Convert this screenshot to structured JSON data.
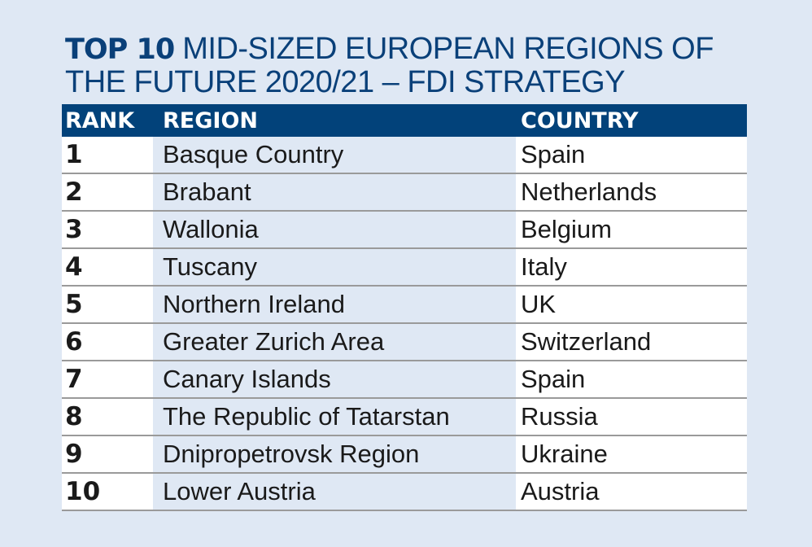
{
  "title": {
    "bold": "TOP 10",
    "rest": " MID-SIZED EUROPEAN REGIONS OF THE FUTURE 2020/21 – FDI STRATEGY"
  },
  "table": {
    "headers": [
      "RANK",
      "REGION",
      "COUNTRY"
    ],
    "rows": [
      [
        "1",
        "Basque Country",
        "Spain"
      ],
      [
        "2",
        "Brabant",
        "Netherlands"
      ],
      [
        "3",
        "Wallonia",
        "Belgium"
      ],
      [
        "4",
        "Tuscany",
        "Italy"
      ],
      [
        "5",
        "Northern Ireland",
        "UK"
      ],
      [
        "6",
        "Greater Zurich Area",
        "Switzerland"
      ],
      [
        "7",
        "Canary Islands",
        "Spain"
      ],
      [
        "8",
        "The Republic of Tatarstan",
        "Russia"
      ],
      [
        "9",
        "Dnipropetrovsk Region",
        "Ukraine"
      ],
      [
        "10",
        "Lower Austria",
        "Austria"
      ]
    ]
  }
}
